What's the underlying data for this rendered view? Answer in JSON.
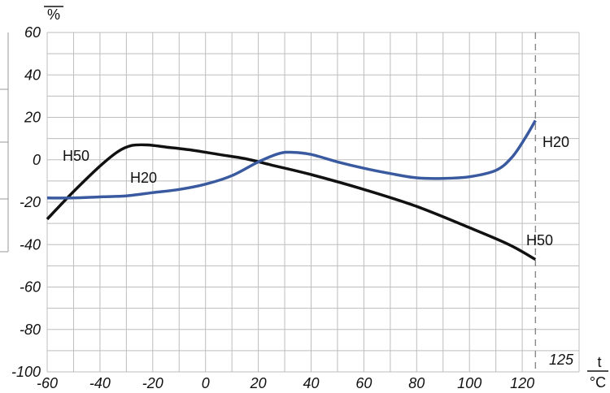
{
  "chart_data": {
    "type": "line",
    "xlim": [
      -60,
      130
    ],
    "ylim": [
      -100,
      60
    ],
    "x_ticks": [
      -60,
      -40,
      -20,
      0,
      20,
      40,
      60,
      80,
      100,
      120
    ],
    "y_ticks": [
      60,
      40,
      20,
      0,
      -20,
      -40,
      -60,
      -80,
      -100
    ],
    "grid": true,
    "ylabel": "%",
    "xlabel": {
      "top": "t",
      "bottom": "°C"
    },
    "marker": {
      "x": 125,
      "label": "125"
    },
    "colors": {
      "H50": "#111111",
      "H20": "#3a5aa0"
    },
    "series": [
      {
        "name": "H50",
        "inline_labels": [
          "H50",
          "H50"
        ],
        "x": [
          -60,
          -50,
          -40,
          -33,
          -28,
          -22,
          -15,
          -5,
          5,
          15,
          25,
          40,
          60,
          80,
          100,
          115,
          125
        ],
        "y": [
          -28,
          -15,
          -3,
          4,
          6.7,
          7,
          6,
          4.5,
          2.5,
          0.5,
          -2.5,
          -7,
          -14,
          -22,
          -32,
          -40,
          -47
        ]
      },
      {
        "name": "H20",
        "inline_labels": [
          "H20",
          "H20"
        ],
        "x": [
          -60,
          -50,
          -40,
          -30,
          -20,
          -10,
          0,
          10,
          20,
          28,
          33,
          40,
          50,
          60,
          70,
          80,
          90,
          100,
          110,
          116,
          121,
          125
        ],
        "y": [
          -18,
          -18,
          -17.5,
          -17,
          -15.5,
          -14,
          -11.5,
          -7.5,
          -1,
          3,
          3.5,
          2.5,
          -1,
          -4,
          -6.5,
          -8.5,
          -8.8,
          -8,
          -5,
          1,
          10,
          18.5
        ]
      }
    ]
  }
}
